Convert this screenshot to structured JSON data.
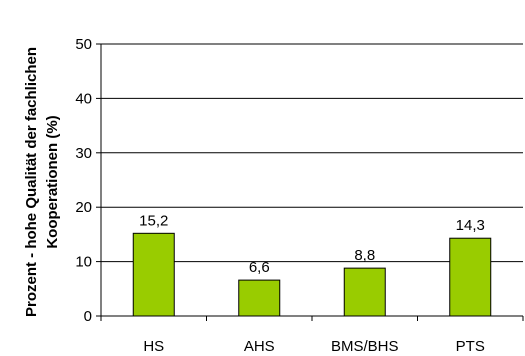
{
  "chart_data": {
    "type": "bar",
    "categories": [
      "HS",
      "AHS",
      "BMS/BHS",
      "PTS"
    ],
    "values": [
      15.2,
      6.6,
      8.8,
      14.3
    ],
    "value_labels": [
      "15,2",
      "6,6",
      "8,8",
      "14,3"
    ],
    "title": "",
    "xlabel": "",
    "ylabel_lines": [
      "Prozent - hohe Qualität der fachlichen",
      "Kooperationen (%)"
    ],
    "ylim": [
      0,
      50
    ],
    "yticks": [
      0,
      10,
      20,
      30,
      40,
      50
    ],
    "ytick_labels": [
      "0",
      "10",
      "20",
      "30",
      "40",
      "50"
    ],
    "grid": true,
    "legend": "none",
    "colors": {
      "bar_fill": "#99cc00",
      "bar_stroke": "#000000",
      "gridline": "#000000",
      "text": "#000000"
    }
  }
}
